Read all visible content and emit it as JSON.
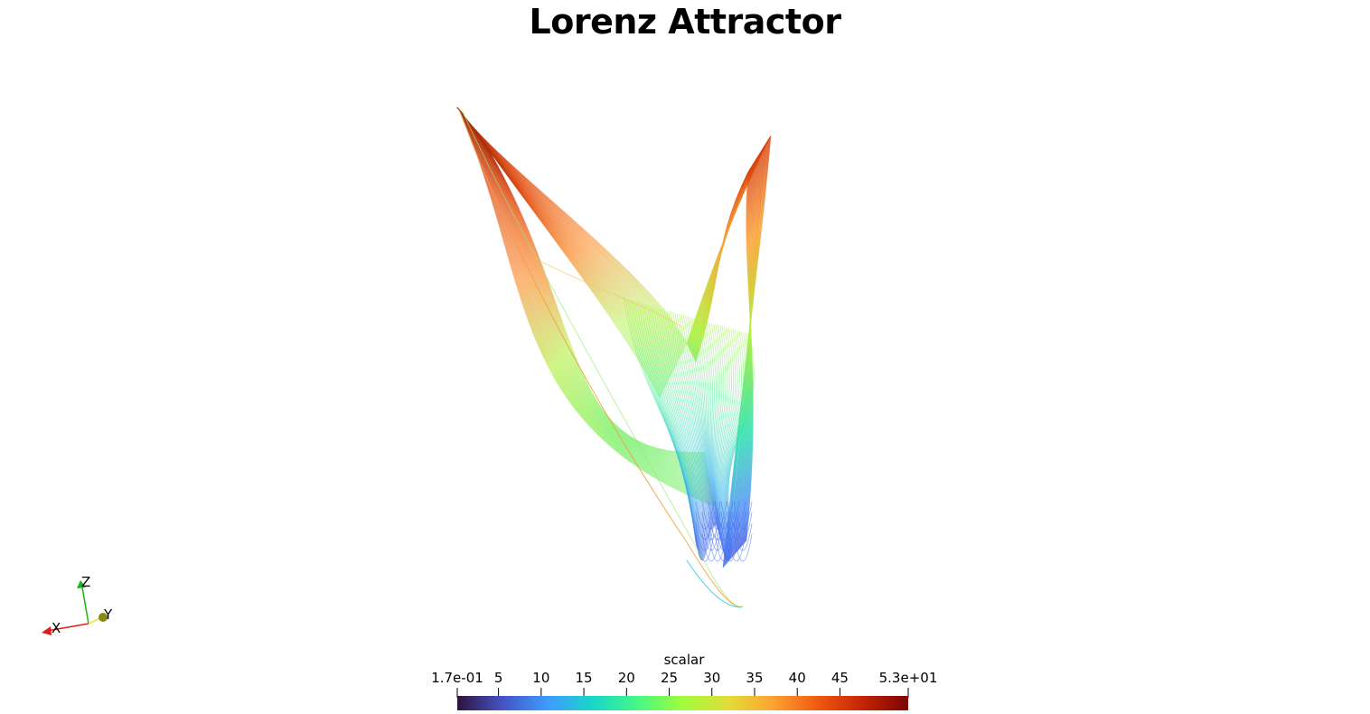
{
  "title": "Lorenz Attractor",
  "colorbar": {
    "label": "scalar",
    "min_label": "1.7e-01",
    "max_label": "5.3e+01",
    "range": [
      0.17,
      53
    ],
    "ticks": [
      "5",
      "10",
      "15",
      "20",
      "25",
      "30",
      "35",
      "40",
      "45"
    ],
    "colormap": [
      "#30123b",
      "#4454c4",
      "#3e9bfe",
      "#18d6cb",
      "#46f884",
      "#a2fc3c",
      "#e1dd37",
      "#fea331",
      "#ef5911",
      "#c22402",
      "#7a0403"
    ]
  },
  "axes": {
    "x": "X",
    "y": "Y",
    "z": "Z",
    "x_color": "#e31a1a",
    "y_color": "#e6e619",
    "z_color": "#1ab31a"
  }
}
